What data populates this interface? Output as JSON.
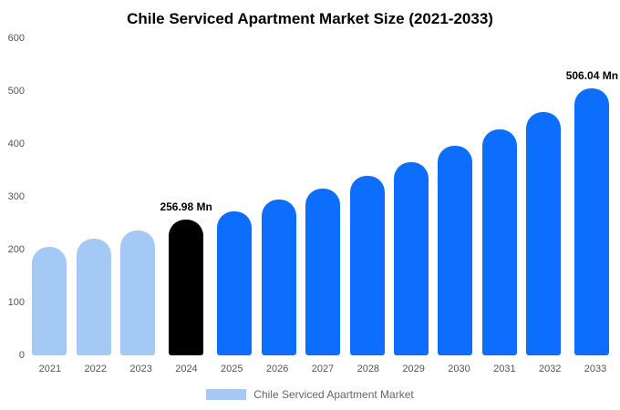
{
  "chart_data": {
    "type": "bar",
    "title": "Chile Serviced Apartment Market Size (2021-2033)",
    "categories": [
      "2021",
      "2022",
      "2023",
      "2024",
      "2025",
      "2026",
      "2027",
      "2028",
      "2029",
      "2030",
      "2031",
      "2032",
      "2033"
    ],
    "values": [
      205,
      220,
      236,
      256.98,
      273,
      294,
      316,
      340,
      366,
      396,
      427,
      461,
      506.04
    ],
    "bar_colors": [
      "light",
      "light",
      "light",
      "black",
      "blue",
      "blue",
      "blue",
      "blue",
      "blue",
      "blue",
      "blue",
      "blue",
      "blue"
    ],
    "colors": {
      "light": "#a4c9f4",
      "blue": "#0d6efd",
      "black": "#000000"
    },
    "ylim": [
      0,
      600
    ],
    "yticks": [
      0,
      100,
      200,
      300,
      400,
      500,
      600
    ],
    "grid": false,
    "legend_position": "bottom",
    "legend": [
      {
        "label": "Chile Serviced Apartment Market",
        "color": "#a4c9f4"
      }
    ],
    "annotations": [
      {
        "index": 3,
        "text": "256.98 Mn"
      },
      {
        "index": 12,
        "text": "506.04 Mn"
      }
    ]
  }
}
